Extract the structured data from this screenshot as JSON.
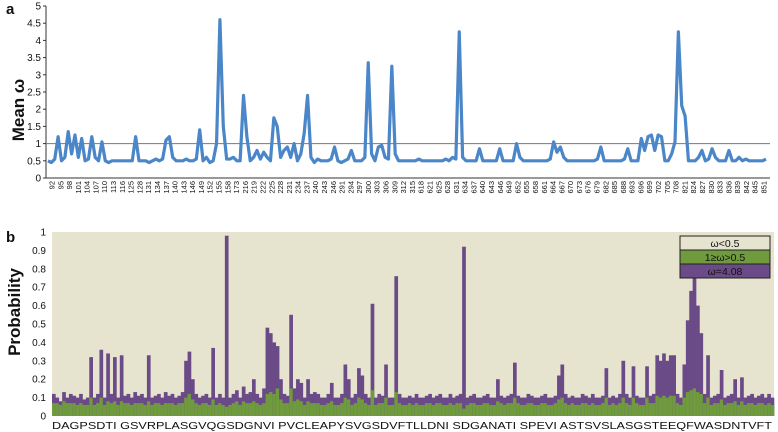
{
  "chart_data": [
    {
      "panel": "a",
      "type": "line",
      "ylabel": "Mean ω",
      "ylim": [
        0,
        5
      ],
      "yticks": [
        0,
        0.5,
        1,
        1.5,
        2,
        2.5,
        3,
        3.5,
        4,
        4.5,
        5
      ],
      "reference_line": 1,
      "line_color": "#4a86c8",
      "x_tick_labels": [
        "92",
        "95",
        "98",
        "101",
        "104",
        "107",
        "110",
        "113",
        "116",
        "125",
        "128",
        "131",
        "134",
        "137",
        "140",
        "143",
        "146",
        "149",
        "152",
        "155",
        "158",
        "173",
        "216",
        "219",
        "222",
        "225",
        "228",
        "231",
        "234",
        "237",
        "240",
        "243",
        "246",
        "291",
        "294",
        "297",
        "300",
        "303",
        "306",
        "309",
        "312",
        "315",
        "618",
        "621",
        "625",
        "628",
        "631",
        "634",
        "637",
        "640",
        "643",
        "646",
        "649",
        "652",
        "655",
        "658",
        "661",
        "664",
        "667",
        "670",
        "673",
        "676",
        "679",
        "682",
        "685",
        "688",
        "693",
        "696",
        "699",
        "702",
        "705",
        "708",
        "821",
        "824",
        "827",
        "830",
        "833",
        "836",
        "839",
        "842",
        "845",
        "851"
      ],
      "series": [
        {
          "values": [
            0.5,
            0.45,
            0.55,
            1.2,
            0.5,
            0.6,
            1.35,
            0.7,
            1.25,
            0.6,
            1.15,
            0.5,
            0.55,
            1.2,
            0.6,
            0.5,
            1.05,
            0.5,
            0.45,
            0.5,
            0.5,
            0.5,
            0.5,
            0.5,
            0.5,
            0.5,
            1.2,
            0.5,
            0.5,
            0.5,
            0.45,
            0.5,
            0.55,
            0.5,
            0.55,
            1.1,
            1.2,
            0.6,
            0.5,
            0.5,
            0.5,
            0.55,
            0.5,
            0.5,
            0.55,
            1.4,
            0.5,
            0.6,
            0.45,
            0.5,
            1.0,
            4.6,
            1.5,
            0.55,
            0.55,
            0.6,
            0.5,
            0.5,
            2.4,
            1.2,
            0.5,
            0.6,
            0.8,
            0.55,
            0.75,
            0.6,
            0.5,
            1.75,
            1.5,
            0.6,
            0.8,
            0.9,
            0.6,
            1.0,
            0.5,
            0.7,
            1.3,
            2.4,
            0.6,
            0.45,
            0.55,
            0.5,
            0.5,
            0.5,
            0.55,
            0.9,
            0.5,
            0.45,
            0.5,
            0.55,
            0.8,
            0.5,
            0.5,
            0.5,
            0.6,
            3.35,
            0.7,
            0.5,
            0.9,
            0.95,
            0.6,
            0.55,
            3.25,
            0.7,
            0.5,
            0.5,
            0.5,
            0.5,
            0.5,
            0.5,
            0.55,
            0.5,
            0.5,
            0.5,
            0.5,
            0.5,
            0.5,
            0.5,
            0.55,
            0.5,
            0.6,
            0.55,
            4.25,
            0.6,
            0.5,
            0.5,
            0.5,
            0.5,
            0.85,
            0.5,
            0.5,
            0.5,
            0.5,
            0.5,
            0.85,
            0.5,
            0.5,
            0.5,
            0.5,
            1.0,
            0.6,
            0.5,
            0.5,
            0.5,
            0.5,
            0.5,
            0.5,
            0.5,
            0.5,
            0.55,
            1.05,
            0.75,
            0.9,
            0.6,
            0.5,
            0.5,
            0.5,
            0.5,
            0.5,
            0.5,
            0.5,
            0.5,
            0.5,
            0.55,
            0.9,
            0.5,
            0.5,
            0.5,
            0.5,
            0.5,
            0.5,
            0.55,
            0.85,
            0.5,
            0.5,
            0.5,
            1.15,
            0.8,
            1.2,
            1.25,
            0.8,
            1.25,
            1.2,
            0.5,
            0.5,
            0.7,
            1.05,
            4.25,
            2.1,
            1.8,
            0.5,
            0.5,
            0.5,
            0.6,
            0.8,
            0.5,
            0.55,
            0.85,
            0.6,
            0.5,
            0.5,
            0.5,
            0.8,
            0.5,
            0.5,
            0.6,
            0.5,
            0.55,
            0.5,
            0.5,
            0.5,
            0.5,
            0.5,
            0.55
          ]
        }
      ]
    },
    {
      "panel": "b",
      "type": "bar",
      "stacked": true,
      "ylabel": "Probability",
      "ylim": [
        0,
        1
      ],
      "yticks": [
        0,
        0.1,
        0.2,
        0.3,
        0.4,
        0.5,
        0.6,
        0.7,
        0.8,
        0.9,
        1
      ],
      "sequence": "DAGPSDTIGSVRPLASGVQGSDGNVIPVCLEAPYSVGSDVFTLLDNISDGANATISPEVIASTSVSLASGSTEEQFWASDNTVFT",
      "sequence_display": "DAGPSDTI GSVRPLASGVQGSDGNVI PVCLEAPYSVGSDVFTLLDNI SDGANATI SPEVI ASTSVSLASGSTEEQFWASDNTVFT",
      "legend": [
        "ω<0.5",
        "1≥ω>0.5",
        "ω=4.08"
      ],
      "colors": {
        "low": "#e6e3cf",
        "mid": "#6f9a3e",
        "high": "#6a4a87",
        "background": "#e6e3cf"
      },
      "series": [
        {
          "name": "ω=4.08",
          "values": [
            0.12,
            0.1,
            0.08,
            0.13,
            0.1,
            0.12,
            0.11,
            0.1,
            0.12,
            0.09,
            0.1,
            0.32,
            0.1,
            0.12,
            0.36,
            0.1,
            0.34,
            0.12,
            0.32,
            0.1,
            0.33,
            0.11,
            0.12,
            0.1,
            0.13,
            0.11,
            0.12,
            0.1,
            0.33,
            0.1,
            0.11,
            0.12,
            0.1,
            0.13,
            0.11,
            0.12,
            0.1,
            0.11,
            0.13,
            0.3,
            0.35,
            0.2,
            0.12,
            0.1,
            0.11,
            0.12,
            0.1,
            0.37,
            0.1,
            0.12,
            0.1,
            0.98,
            0.1,
            0.12,
            0.14,
            0.1,
            0.16,
            0.12,
            0.13,
            0.2,
            0.12,
            0.1,
            0.15,
            0.48,
            0.45,
            0.4,
            0.38,
            0.2,
            0.12,
            0.11,
            0.55,
            0.15,
            0.2,
            0.18,
            0.1,
            0.2,
            0.12,
            0.13,
            0.12,
            0.1,
            0.1,
            0.12,
            0.18,
            0.1,
            0.1,
            0.12,
            0.28,
            0.2,
            0.1,
            0.12,
            0.26,
            0.22,
            0.12,
            0.1,
            0.61,
            0.1,
            0.12,
            0.11,
            0.28,
            0.1,
            0.1,
            0.76,
            0.12,
            0.1,
            0.1,
            0.11,
            0.1,
            0.12,
            0.1,
            0.1,
            0.11,
            0.12,
            0.1,
            0.11,
            0.12,
            0.1,
            0.1,
            0.12,
            0.1,
            0.11,
            0.12,
            0.92,
            0.1,
            0.11,
            0.12,
            0.1,
            0.1,
            0.11,
            0.12,
            0.1,
            0.1,
            0.2,
            0.11,
            0.1,
            0.11,
            0.12,
            0.29,
            0.11,
            0.1,
            0.1,
            0.12,
            0.11,
            0.1,
            0.1,
            0.11,
            0.12,
            0.1,
            0.1,
            0.11,
            0.22,
            0.28,
            0.12,
            0.1,
            0.11,
            0.1,
            0.1,
            0.12,
            0.11,
            0.1,
            0.12,
            0.1,
            0.1,
            0.11,
            0.26,
            0.1,
            0.11,
            0.1,
            0.12,
            0.3,
            0.12,
            0.1,
            0.27,
            0.11,
            0.1,
            0.1,
            0.27,
            0.11,
            0.12,
            0.33,
            0.3,
            0.34,
            0.3,
            0.33,
            0.33,
            0.12,
            0.1,
            0.28,
            0.52,
            0.68,
            0.9,
            0.6,
            0.45,
            0.12,
            0.33,
            0.1,
            0.11,
            0.12,
            0.25,
            0.1,
            0.11,
            0.12,
            0.2,
            0.1,
            0.21,
            0.1,
            0.11,
            0.12,
            0.1,
            0.11,
            0.12,
            0.1,
            0.12,
            0.1
          ]
        },
        {
          "name": "1≥ω>0.5",
          "values": [
            0.07,
            0.07,
            0.06,
            0.08,
            0.07,
            0.07,
            0.07,
            0.06,
            0.07,
            0.06,
            0.06,
            0.1,
            0.06,
            0.07,
            0.1,
            0.06,
            0.08,
            0.07,
            0.08,
            0.06,
            0.08,
            0.07,
            0.07,
            0.06,
            0.07,
            0.07,
            0.07,
            0.06,
            0.08,
            0.06,
            0.07,
            0.07,
            0.06,
            0.07,
            0.07,
            0.07,
            0.06,
            0.07,
            0.07,
            0.1,
            0.12,
            0.09,
            0.07,
            0.06,
            0.07,
            0.07,
            0.06,
            0.09,
            0.06,
            0.07,
            0.06,
            0.05,
            0.06,
            0.07,
            0.08,
            0.06,
            0.08,
            0.07,
            0.07,
            0.08,
            0.07,
            0.06,
            0.07,
            0.12,
            0.13,
            0.12,
            0.15,
            0.09,
            0.07,
            0.07,
            0.15,
            0.08,
            0.09,
            0.08,
            0.06,
            0.08,
            0.07,
            0.07,
            0.07,
            0.06,
            0.06,
            0.07,
            0.08,
            0.06,
            0.06,
            0.07,
            0.1,
            0.09,
            0.06,
            0.07,
            0.1,
            0.09,
            0.07,
            0.06,
            0.14,
            0.06,
            0.07,
            0.07,
            0.1,
            0.06,
            0.06,
            0.13,
            0.07,
            0.06,
            0.06,
            0.07,
            0.06,
            0.07,
            0.06,
            0.06,
            0.07,
            0.07,
            0.06,
            0.07,
            0.07,
            0.06,
            0.06,
            0.07,
            0.06,
            0.07,
            0.07,
            0.04,
            0.06,
            0.07,
            0.07,
            0.06,
            0.06,
            0.07,
            0.07,
            0.06,
            0.06,
            0.08,
            0.07,
            0.06,
            0.07,
            0.07,
            0.1,
            0.07,
            0.06,
            0.06,
            0.07,
            0.07,
            0.06,
            0.06,
            0.07,
            0.07,
            0.06,
            0.06,
            0.07,
            0.09,
            0.1,
            0.07,
            0.06,
            0.07,
            0.06,
            0.06,
            0.07,
            0.07,
            0.06,
            0.07,
            0.06,
            0.06,
            0.07,
            0.1,
            0.06,
            0.07,
            0.06,
            0.07,
            0.1,
            0.07,
            0.06,
            0.1,
            0.07,
            0.06,
            0.06,
            0.1,
            0.07,
            0.07,
            0.11,
            0.1,
            0.11,
            0.1,
            0.11,
            0.11,
            0.07,
            0.06,
            0.1,
            0.13,
            0.14,
            0.15,
            0.13,
            0.12,
            0.07,
            0.1,
            0.06,
            0.07,
            0.07,
            0.09,
            0.06,
            0.07,
            0.07,
            0.08,
            0.06,
            0.08,
            0.06,
            0.07,
            0.07,
            0.06,
            0.07,
            0.07,
            0.06,
            0.07,
            0.06
          ]
        }
      ]
    }
  ]
}
